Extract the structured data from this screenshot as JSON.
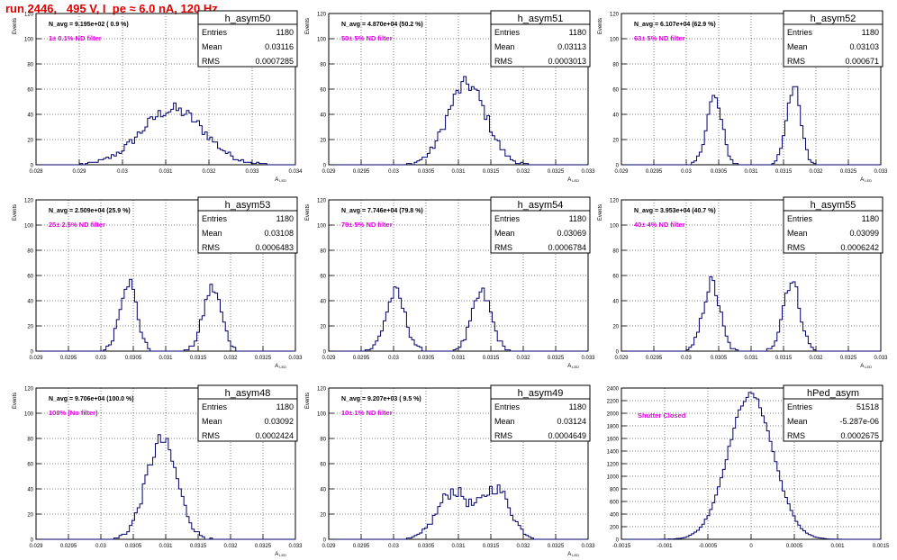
{
  "page_title": "run 2446,   495 V, I_pe ≈ 6.0 nA, 120 Hz",
  "stats_labels": {
    "entries": "Entries",
    "mean": "Mean",
    "rms": "RMS"
  },
  "chart_data": [
    {
      "type": "histogram",
      "hist_name": "h_asym50",
      "ylabel": "Events",
      "xlabel": "A",
      "xlabel_sub": "LED",
      "navg_text": "N_avg = 9.195e+02 ( 0.9 %)",
      "filter_text": "1± 0.1% ND filter",
      "entries": "1180",
      "mean": "0.03116",
      "rms": "0.0007285",
      "xlim": [
        0.028,
        0.034
      ],
      "ylim": [
        0,
        120
      ],
      "xticks": [
        0.028,
        0.029,
        0.03,
        0.031,
        0.032,
        0.033,
        0.034
      ],
      "xtick_labels": [
        "0.028",
        "0.029",
        "0.03",
        "0.031",
        "0.032",
        "0.033",
        "0.034"
      ],
      "yticks": [
        0,
        20,
        40,
        60,
        80,
        100,
        120
      ],
      "peaks": [
        {
          "mean": 0.03116,
          "sigma": 0.00072,
          "height": 44
        }
      ]
    },
    {
      "type": "histogram",
      "hist_name": "h_asym51",
      "ylabel": "Events",
      "xlabel": "A",
      "xlabel_sub": "LED",
      "navg_text": "N_avg = 4.870e+04 (50.2 %)",
      "filter_text": "50± 5% ND filter",
      "entries": "1180",
      "mean": "0.03113",
      "rms": "0.0003013",
      "xlim": [
        0.029,
        0.033
      ],
      "ylim": [
        0,
        120
      ],
      "xticks": [
        0.029,
        0.0295,
        0.03,
        0.0305,
        0.031,
        0.0315,
        0.032,
        0.0325,
        0.033
      ],
      "xtick_labels": [
        "0.029",
        "0.0295",
        "0.03",
        "0.0305",
        "0.031",
        "0.0315",
        "0.032",
        "0.0325",
        "0.033"
      ],
      "yticks": [
        0,
        20,
        40,
        60,
        80,
        100,
        120
      ],
      "peaks": [
        {
          "mean": 0.03113,
          "sigma": 0.0003,
          "height": 64
        }
      ]
    },
    {
      "type": "histogram",
      "hist_name": "h_asym52",
      "ylabel": "Events",
      "xlabel": "A",
      "xlabel_sub": "LED",
      "navg_text": "N_avg = 6.107e+04 (62.9 %)",
      "filter_text": "63± 5% ND filter",
      "entries": "1180",
      "mean": "0.03103",
      "rms": "0.000671",
      "xlim": [
        0.029,
        0.033
      ],
      "ylim": [
        0,
        120
      ],
      "xticks": [
        0.029,
        0.0295,
        0.03,
        0.0305,
        0.031,
        0.0315,
        0.032,
        0.0325,
        0.033
      ],
      "xtick_labels": [
        "0.029",
        "0.0295",
        "0.03",
        "0.0305",
        "0.031",
        "0.0315",
        "0.032",
        "0.0325",
        "0.033"
      ],
      "yticks": [
        0,
        20,
        40,
        60,
        80,
        100,
        120
      ],
      "peaks": [
        {
          "mean": 0.03043,
          "sigma": 0.00012,
          "height": 53
        },
        {
          "mean": 0.03165,
          "sigma": 0.00011,
          "height": 62
        }
      ]
    },
    {
      "type": "histogram",
      "hist_name": "h_asym53",
      "ylabel": "Events",
      "xlabel": "A",
      "xlabel_sub": "LED",
      "navg_text": "N_avg = 2.509e+04 (25.9 %)",
      "filter_text": "25± 2.5% ND filter",
      "entries": "1180",
      "mean": "0.03108",
      "rms": "0.0006483",
      "xlim": [
        0.029,
        0.033
      ],
      "ylim": [
        0,
        120
      ],
      "xticks": [
        0.029,
        0.0295,
        0.03,
        0.0305,
        0.031,
        0.0315,
        0.032,
        0.0325,
        0.033
      ],
      "xtick_labels": [
        "0.029",
        "0.0295",
        "0.03",
        "0.0305",
        "0.031",
        "0.0315",
        "0.032",
        "0.0325",
        "0.033"
      ],
      "yticks": [
        0,
        20,
        40,
        60,
        80,
        100,
        120
      ],
      "peaks": [
        {
          "mean": 0.03042,
          "sigma": 0.00013,
          "height": 56
        },
        {
          "mean": 0.03172,
          "sigma": 0.00014,
          "height": 50
        }
      ]
    },
    {
      "type": "histogram",
      "hist_name": "h_asym54",
      "ylabel": "Events",
      "xlabel": "A",
      "xlabel_sub": "LED",
      "navg_text": "N_avg = 7.746e+04 (79.8 %)",
      "filter_text": "79± 5% ND filter",
      "entries": "1180",
      "mean": "0.03069",
      "rms": "0.0006784",
      "xlim": [
        0.029,
        0.033
      ],
      "ylim": [
        0,
        120
      ],
      "xticks": [
        0.029,
        0.0295,
        0.03,
        0.0305,
        0.031,
        0.0315,
        0.032,
        0.0325,
        0.033
      ],
      "xtick_labels": [
        "0.029",
        "0.0295",
        "0.03",
        "0.0305",
        "0.031",
        "0.0315",
        "0.032",
        "0.0325",
        "0.033"
      ],
      "yticks": [
        0,
        20,
        40,
        60,
        80,
        100,
        120
      ],
      "peaks": [
        {
          "mean": 0.03003,
          "sigma": 0.00015,
          "height": 46
        },
        {
          "mean": 0.03136,
          "sigma": 0.00015,
          "height": 46
        }
      ]
    },
    {
      "type": "histogram",
      "hist_name": "h_asym55",
      "ylabel": "Events",
      "xlabel": "A",
      "xlabel_sub": "LED",
      "navg_text": "N_avg = 3.953e+04 (40.7 %)",
      "filter_text": "40± 4% ND filter",
      "entries": "1180",
      "mean": "0.03099",
      "rms": "0.0006242",
      "xlim": [
        0.029,
        0.033
      ],
      "ylim": [
        0,
        120
      ],
      "xticks": [
        0.029,
        0.0295,
        0.03,
        0.0305,
        0.031,
        0.0315,
        0.032,
        0.0325,
        0.033
      ],
      "xtick_labels": [
        "0.029",
        "0.0295",
        "0.03",
        "0.0305",
        "0.031",
        "0.0315",
        "0.032",
        "0.0325",
        "0.033"
      ],
      "yticks": [
        0,
        20,
        40,
        60,
        80,
        100,
        120
      ],
      "peaks": [
        {
          "mean": 0.03039,
          "sigma": 0.00013,
          "height": 54
        },
        {
          "mean": 0.03162,
          "sigma": 0.00013,
          "height": 56
        }
      ]
    },
    {
      "type": "histogram",
      "hist_name": "h_asym48",
      "ylabel": "Events",
      "xlabel": "A",
      "xlabel_sub": "LED",
      "navg_text": "N_avg = 9.706e+04 (100.0 %)",
      "filter_text": "100% (No filter)",
      "entries": "1180",
      "mean": "0.03092",
      "rms": "0.0002424",
      "xlim": [
        0.029,
        0.033
      ],
      "ylim": [
        0,
        120
      ],
      "xticks": [
        0.029,
        0.0295,
        0.03,
        0.0305,
        0.031,
        0.0315,
        0.032,
        0.0325,
        0.033
      ],
      "xtick_labels": [
        "0.029",
        "0.0295",
        "0.03",
        "0.0305",
        "0.031",
        "0.0315",
        "0.032",
        "0.0325",
        "0.033"
      ],
      "yticks": [
        0,
        20,
        40,
        60,
        80,
        100,
        120
      ],
      "peaks": [
        {
          "mean": 0.03094,
          "sigma": 0.00024,
          "height": 78
        }
      ]
    },
    {
      "type": "histogram",
      "hist_name": "h_asym49",
      "ylabel": "Events",
      "xlabel": "A",
      "xlabel_sub": "LED",
      "navg_text": "N_avg = 9.207e+03 ( 9.5 %)",
      "filter_text": "10± 1% ND filter",
      "entries": "1180",
      "mean": "0.03124",
      "rms": "0.0004649",
      "xlim": [
        0.029,
        0.033
      ],
      "ylim": [
        0,
        120
      ],
      "xticks": [
        0.029,
        0.0295,
        0.03,
        0.0305,
        0.031,
        0.0315,
        0.032,
        0.0325,
        0.033
      ],
      "xtick_labels": [
        "0.029",
        "0.0295",
        "0.03",
        "0.0305",
        "0.031",
        "0.0315",
        "0.032",
        "0.0325",
        "0.033"
      ],
      "yticks": [
        0,
        20,
        40,
        60,
        80,
        100,
        120
      ],
      "peaks": [
        {
          "mean": 0.03092,
          "sigma": 0.00024,
          "height": 38
        },
        {
          "mean": 0.03158,
          "sigma": 0.00022,
          "height": 40
        }
      ]
    },
    {
      "type": "histogram",
      "hist_name": "hPed_asym",
      "ylabel": "",
      "xlabel": "",
      "xlabel_sub": "",
      "navg_text": "",
      "filter_text": "Shutter Closed",
      "entries": "51518",
      "mean": "-5.287e-06",
      "rms": "0.0002675",
      "xlim": [
        -0.0015,
        0.0015
      ],
      "ylim": [
        0,
        2400
      ],
      "xticks": [
        -0.0015,
        -0.001,
        -0.0005,
        0,
        0.0005,
        0.001,
        0.0015
      ],
      "xtick_labels": [
        "-0.0015",
        "-0.001",
        "-0.0005",
        "0",
        "0.0005",
        "0.001",
        "0.0015"
      ],
      "yticks": [
        0,
        200,
        400,
        600,
        800,
        1000,
        1200,
        1400,
        1600,
        1800,
        2000,
        2200,
        2400
      ],
      "peaks": [
        {
          "mean": -5.3e-06,
          "sigma": 0.00026,
          "height": 2300
        }
      ]
    }
  ]
}
